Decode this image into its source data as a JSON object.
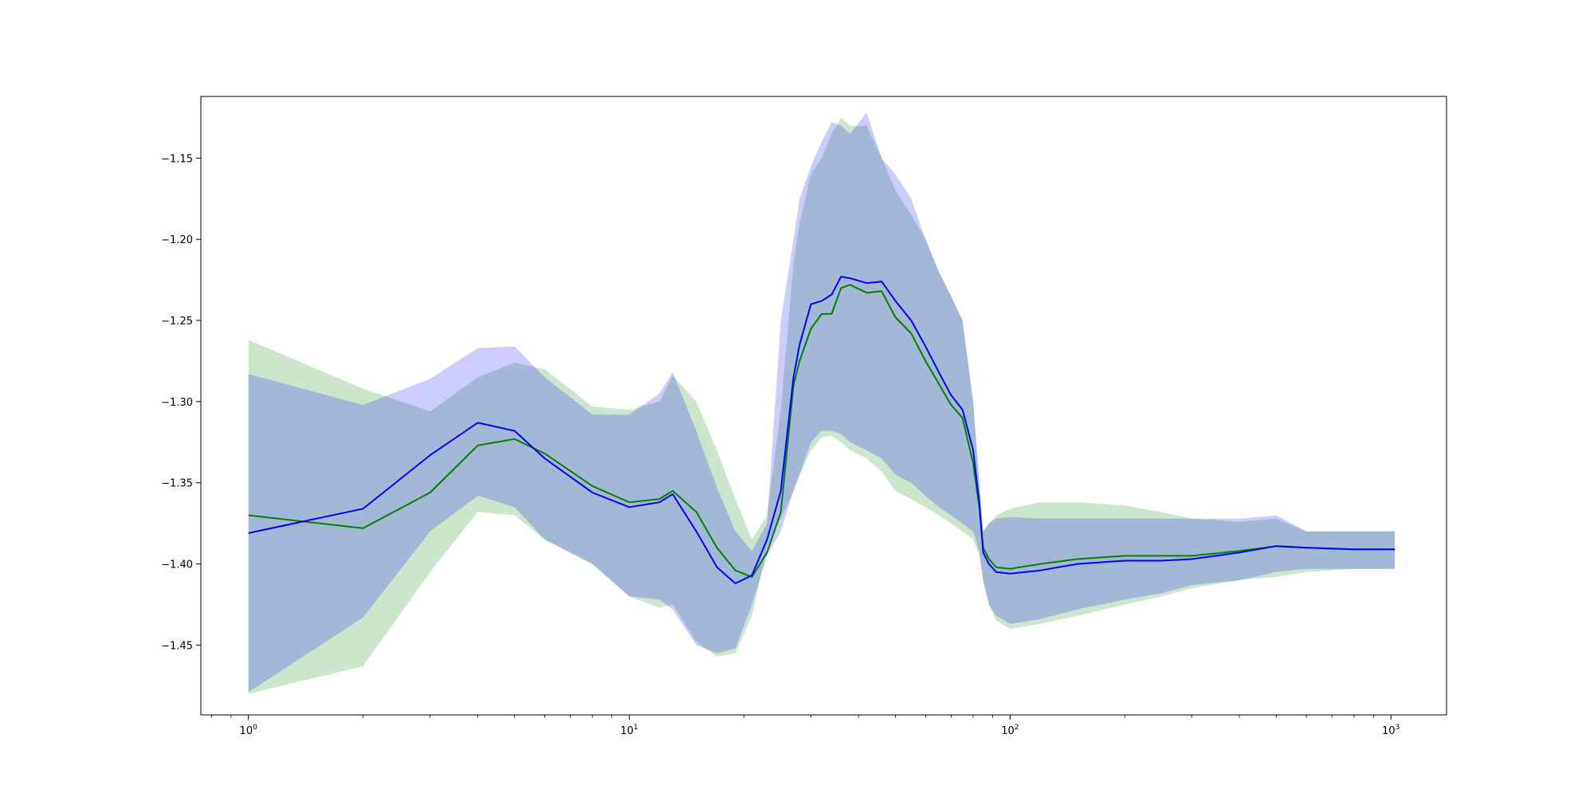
{
  "chart_data": {
    "type": "line",
    "title": "",
    "xlabel": "",
    "ylabel": "",
    "xscale": "log",
    "xlim": [
      0.75,
      1400
    ],
    "ylim": [
      -1.493,
      -1.112
    ],
    "grid": false,
    "legend": "none",
    "x_ticks": [
      {
        "base": "10",
        "exp": "0",
        "value": 1
      },
      {
        "base": "10",
        "exp": "1",
        "value": 10
      },
      {
        "base": "10",
        "exp": "2",
        "value": 100
      },
      {
        "base": "10",
        "exp": "3",
        "value": 1000
      }
    ],
    "y_ticks": [
      {
        "label": "−1.15",
        "value": -1.15
      },
      {
        "label": "−1.20",
        "value": -1.2
      },
      {
        "label": "−1.25",
        "value": -1.25
      },
      {
        "label": "−1.30",
        "value": -1.3
      },
      {
        "label": "−1.35",
        "value": -1.35
      },
      {
        "label": "−1.40",
        "value": -1.4
      },
      {
        "label": "−1.45",
        "value": -1.45
      }
    ],
    "x": [
      1,
      2,
      3,
      4,
      5,
      6,
      8,
      10,
      12,
      13,
      15,
      17,
      19,
      21,
      23,
      25,
      27,
      28,
      30,
      32,
      34,
      36,
      38,
      42,
      46,
      50,
      55,
      60,
      65,
      70,
      75,
      80,
      83,
      85,
      88,
      92,
      100,
      120,
      150,
      200,
      250,
      300,
      400,
      500,
      600,
      800,
      1024
    ],
    "series": [
      {
        "color": "#008000",
        "band_color": "#008000",
        "mean": [
          -1.37,
          -1.378,
          -1.356,
          -1.327,
          -1.323,
          -1.332,
          -1.352,
          -1.362,
          -1.36,
          -1.355,
          -1.368,
          -1.39,
          -1.404,
          -1.408,
          -1.393,
          -1.368,
          -1.29,
          -1.275,
          -1.255,
          -1.246,
          -1.246,
          -1.23,
          -1.228,
          -1.233,
          -1.232,
          -1.248,
          -1.258,
          -1.275,
          -1.289,
          -1.302,
          -1.31,
          -1.338,
          -1.365,
          -1.39,
          -1.397,
          -1.402,
          -1.403,
          -1.4,
          -1.397,
          -1.395,
          -1.395,
          -1.395,
          -1.392,
          -1.389,
          -1.39,
          -1.391,
          -1.391
        ],
        "upper": [
          -1.262,
          -1.292,
          -1.306,
          -1.285,
          -1.276,
          -1.28,
          -1.303,
          -1.305,
          -1.3,
          -1.284,
          -1.3,
          -1.33,
          -1.36,
          -1.385,
          -1.37,
          -1.305,
          -1.215,
          -1.19,
          -1.16,
          -1.15,
          -1.135,
          -1.125,
          -1.13,
          -1.13,
          -1.15,
          -1.17,
          -1.185,
          -1.2,
          -1.22,
          -1.235,
          -1.25,
          -1.3,
          -1.35,
          -1.38,
          -1.375,
          -1.37,
          -1.366,
          -1.362,
          -1.362,
          -1.364,
          -1.368,
          -1.372,
          -1.374,
          -1.372,
          -1.38,
          -1.38,
          -1.38
        ],
        "lower": [
          -1.48,
          -1.463,
          -1.405,
          -1.368,
          -1.37,
          -1.385,
          -1.4,
          -1.42,
          -1.427,
          -1.425,
          -1.448,
          -1.457,
          -1.455,
          -1.432,
          -1.39,
          -1.372,
          -1.355,
          -1.345,
          -1.33,
          -1.322,
          -1.321,
          -1.325,
          -1.33,
          -1.335,
          -1.343,
          -1.355,
          -1.36,
          -1.365,
          -1.37,
          -1.375,
          -1.38,
          -1.385,
          -1.395,
          -1.41,
          -1.425,
          -1.435,
          -1.44,
          -1.437,
          -1.432,
          -1.425,
          -1.42,
          -1.415,
          -1.41,
          -1.408,
          -1.405,
          -1.403,
          -1.403
        ]
      },
      {
        "color": "#0000ff",
        "band_color": "#0000ff",
        "mean": [
          -1.381,
          -1.366,
          -1.333,
          -1.313,
          -1.318,
          -1.335,
          -1.356,
          -1.365,
          -1.362,
          -1.357,
          -1.38,
          -1.402,
          -1.412,
          -1.407,
          -1.385,
          -1.355,
          -1.285,
          -1.265,
          -1.24,
          -1.238,
          -1.234,
          -1.223,
          -1.224,
          -1.227,
          -1.226,
          -1.238,
          -1.25,
          -1.266,
          -1.282,
          -1.296,
          -1.305,
          -1.33,
          -1.362,
          -1.393,
          -1.4,
          -1.405,
          -1.406,
          -1.404,
          -1.4,
          -1.398,
          -1.398,
          -1.397,
          -1.393,
          -1.389,
          -1.39,
          -1.391,
          -1.391
        ],
        "upper": [
          -1.283,
          -1.302,
          -1.286,
          -1.267,
          -1.266,
          -1.285,
          -1.308,
          -1.308,
          -1.295,
          -1.282,
          -1.318,
          -1.353,
          -1.38,
          -1.392,
          -1.375,
          -1.25,
          -1.2,
          -1.175,
          -1.155,
          -1.14,
          -1.128,
          -1.13,
          -1.135,
          -1.122,
          -1.15,
          -1.16,
          -1.175,
          -1.2,
          -1.22,
          -1.235,
          -1.25,
          -1.3,
          -1.35,
          -1.38,
          -1.375,
          -1.372,
          -1.371,
          -1.372,
          -1.372,
          -1.372,
          -1.372,
          -1.372,
          -1.372,
          -1.37,
          -1.38,
          -1.38,
          -1.38
        ],
        "lower": [
          -1.479,
          -1.433,
          -1.38,
          -1.358,
          -1.365,
          -1.385,
          -1.4,
          -1.42,
          -1.422,
          -1.428,
          -1.45,
          -1.455,
          -1.452,
          -1.425,
          -1.395,
          -1.38,
          -1.355,
          -1.345,
          -1.325,
          -1.318,
          -1.318,
          -1.32,
          -1.325,
          -1.33,
          -1.335,
          -1.345,
          -1.35,
          -1.358,
          -1.365,
          -1.37,
          -1.375,
          -1.38,
          -1.392,
          -1.41,
          -1.425,
          -1.432,
          -1.437,
          -1.434,
          -1.428,
          -1.422,
          -1.418,
          -1.413,
          -1.41,
          -1.405,
          -1.403,
          -1.403,
          -1.403
        ]
      }
    ]
  }
}
